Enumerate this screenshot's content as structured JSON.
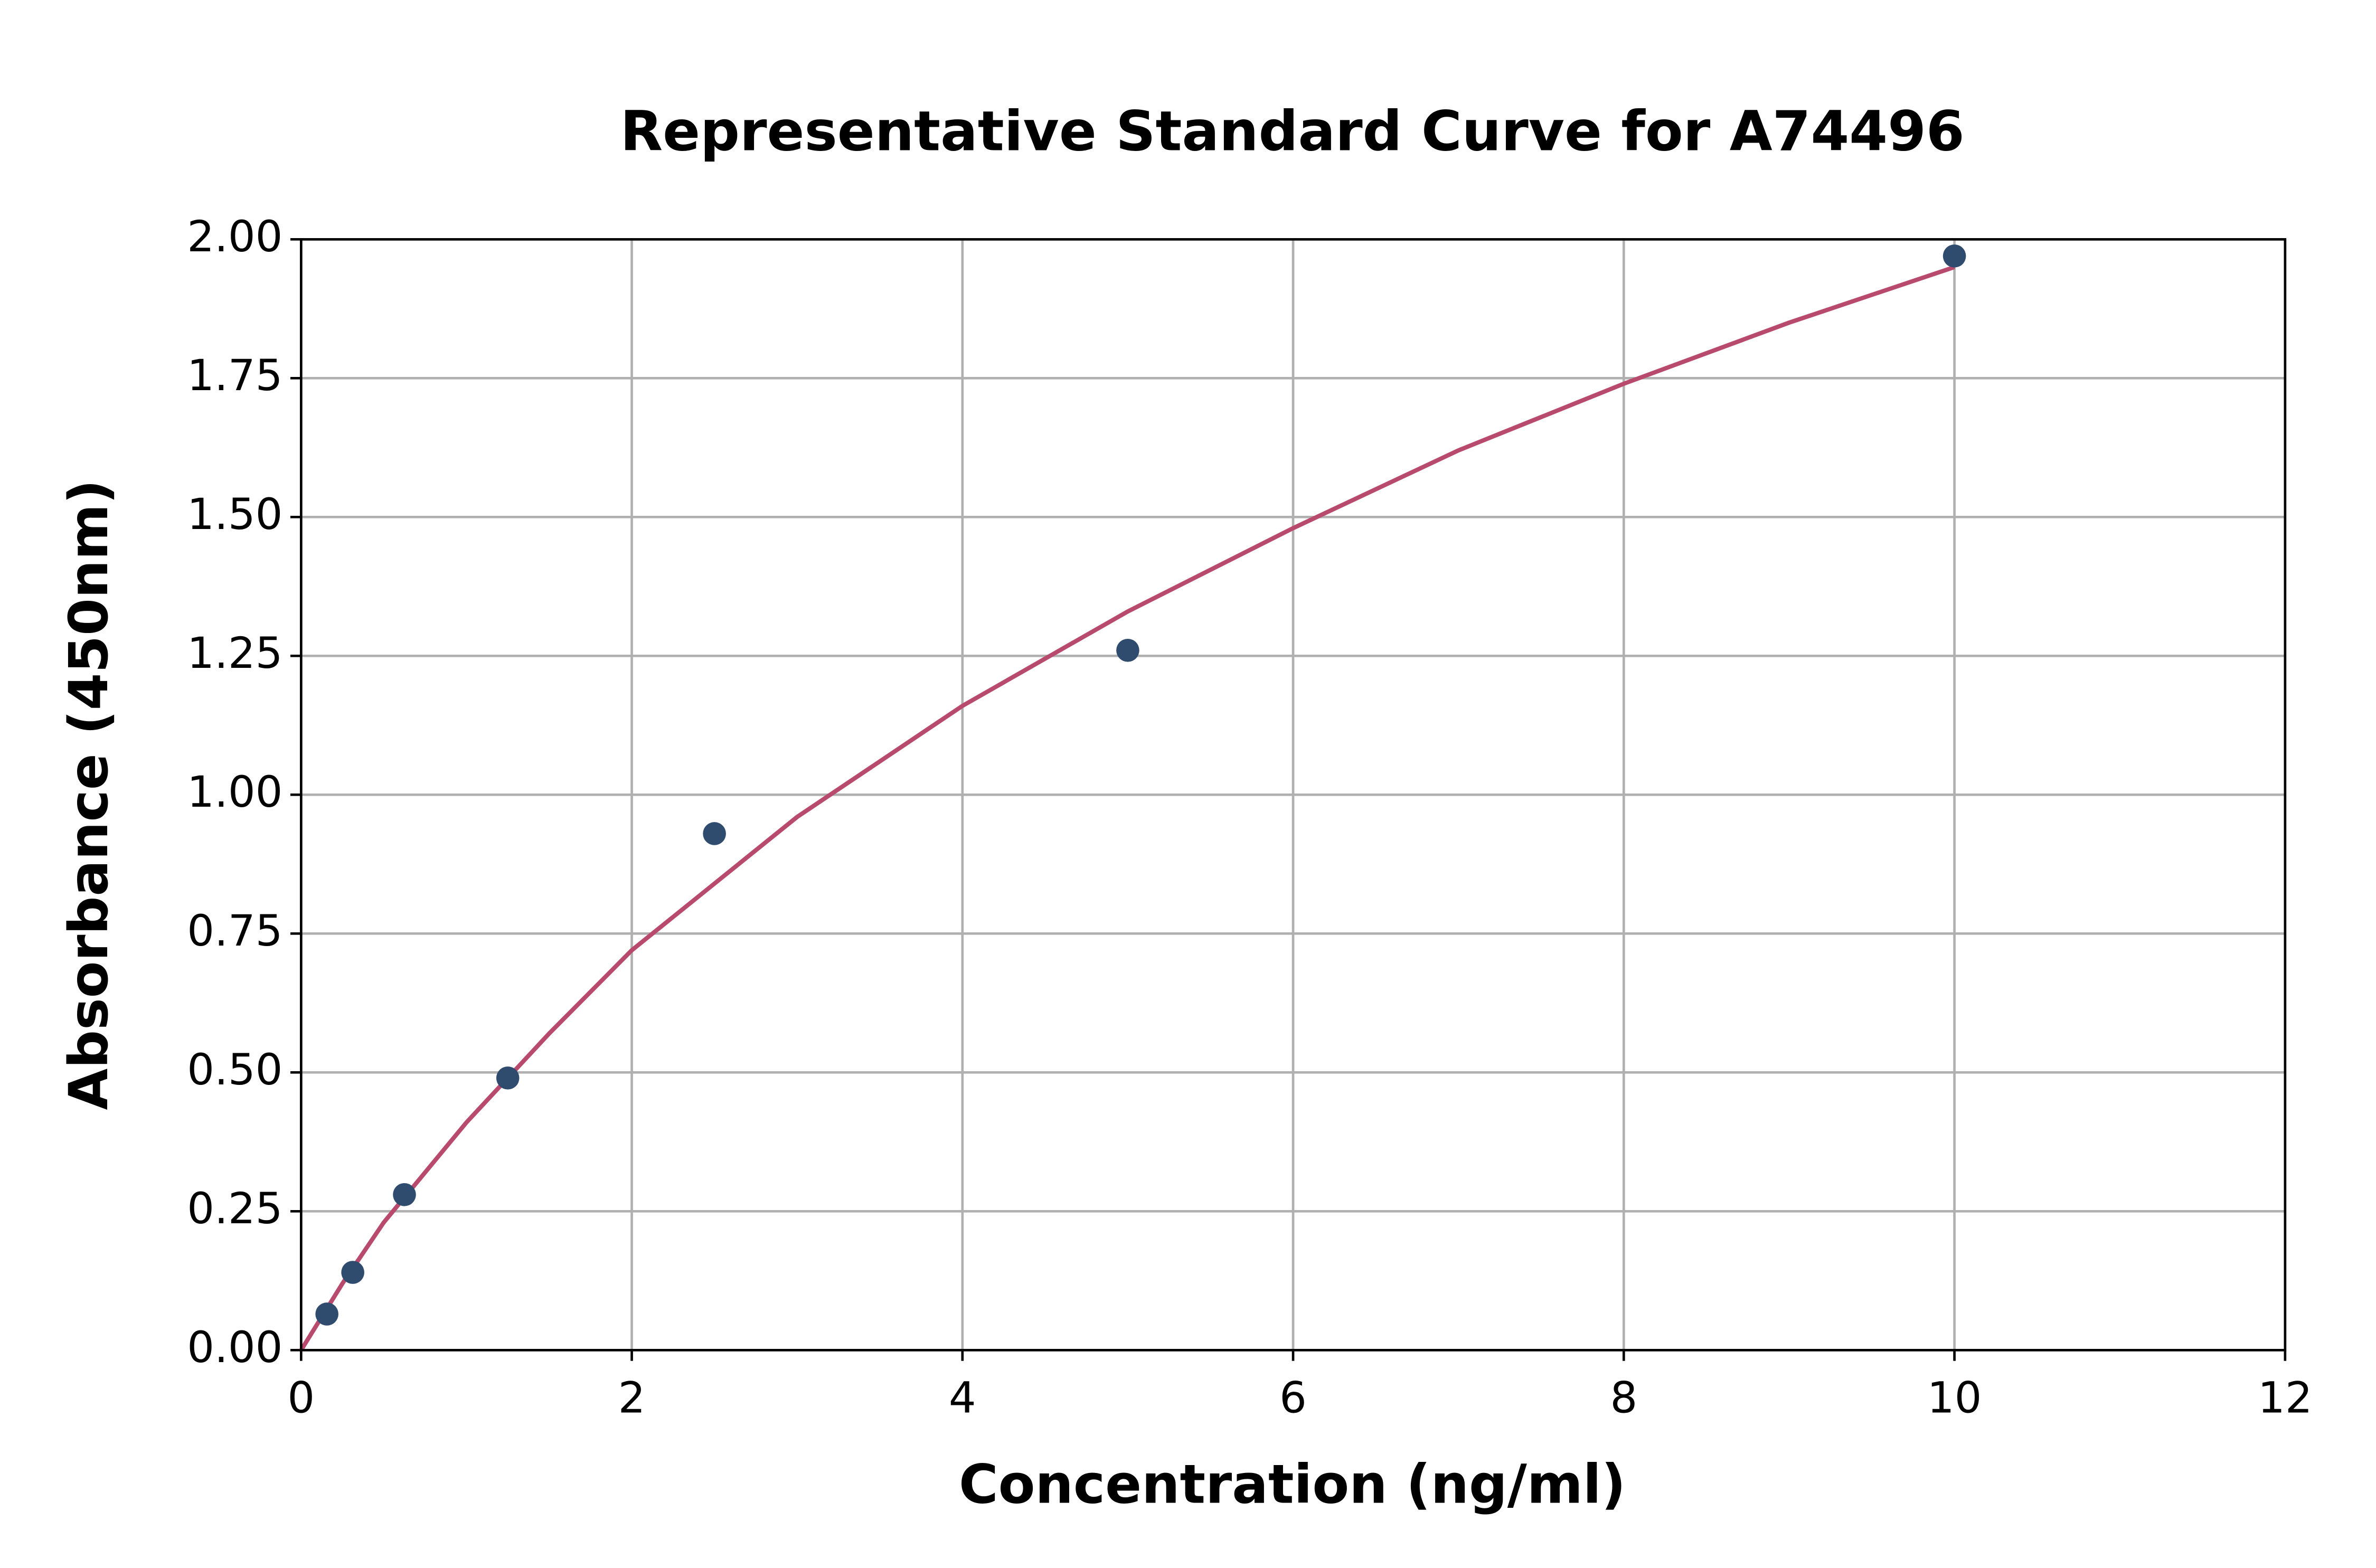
{
  "chart_data": {
    "type": "scatter",
    "title": "Representative Standard Curve for A74496",
    "x_label": "Concentration (ng/ml)",
    "y_label": "Absorbance (450nm)",
    "xlim": [
      0,
      12
    ],
    "ylim": [
      0,
      2
    ],
    "xticks": [
      0,
      2,
      4,
      6,
      8,
      10,
      12
    ],
    "yticks": [
      {
        "value": 0,
        "label": "0.00"
      },
      {
        "value": 0.25,
        "label": "0.25"
      },
      {
        "value": 0.5,
        "label": "0.50"
      },
      {
        "value": 0.75,
        "label": "0.75"
      },
      {
        "value": 1,
        "label": "1.00"
      },
      {
        "value": 1.25,
        "label": "1.25"
      },
      {
        "value": 1.5,
        "label": "1.50"
      },
      {
        "value": 1.75,
        "label": "1.75"
      },
      {
        "value": 2,
        "label": "2.00"
      }
    ],
    "grid": true,
    "series": [
      {
        "type": "scatter",
        "color": "#2f4b6e",
        "x": [
          0.156,
          0.3125,
          0.625,
          1.25,
          2.5,
          5,
          10
        ],
        "values": [
          0.065,
          0.14,
          0.28,
          0.49,
          0.93,
          1.26,
          1.97
        ]
      },
      {
        "type": "line",
        "color": "#b84a6e",
        "x": [
          0,
          0.25,
          0.5,
          1,
          1.5,
          2,
          3,
          4,
          5,
          6,
          7,
          8,
          9,
          10
        ],
        "values": [
          0,
          0.12,
          0.23,
          0.41,
          0.57,
          0.72,
          0.96,
          1.16,
          1.33,
          1.48,
          1.62,
          1.74,
          1.85,
          1.95
        ]
      }
    ]
  }
}
